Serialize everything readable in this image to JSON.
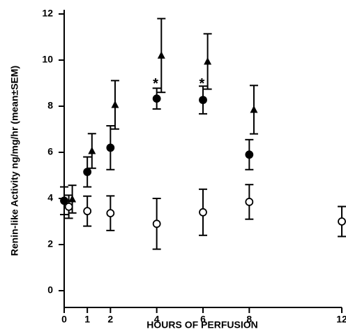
{
  "chart_data": {
    "type": "scatter",
    "x_label": "HOURS OF PERFUSION",
    "y_label": "Renin-like Activity ng/mg/hr (mean±SEM)",
    "xlim": [
      0,
      12
    ],
    "xticks": [
      0,
      1,
      2,
      4,
      6,
      8,
      12
    ],
    "ylim": [
      0,
      12
    ],
    "yticks": [
      0,
      2,
      4,
      6,
      8,
      10,
      12
    ],
    "series": [
      {
        "color": "#000000",
        "marker": "circle-filled",
        "x": [
          0,
          1,
          2,
          4,
          6,
          8
        ],
        "values": [
          3.9,
          5.15,
          6.2,
          8.33,
          8.27,
          5.9
        ],
        "errors": [
          0.6,
          0.65,
          0.95,
          0.45,
          0.6,
          0.65
        ]
      },
      {
        "color": "#000000",
        "marker": "triangle",
        "x": [
          0.35,
          1.2,
          2.2,
          4.2,
          6.2,
          8.2
        ],
        "values": [
          3.97,
          6.06,
          8.06,
          10.2,
          9.94,
          7.85
        ],
        "errors": [
          0.6,
          0.75,
          1.05,
          1.6,
          1.2,
          1.05
        ]
      },
      {
        "color": "#000000",
        "marker": "circle-open",
        "x": [
          0.2,
          1,
          2,
          4,
          6,
          8,
          12
        ],
        "values": [
          3.64,
          3.45,
          3.36,
          2.9,
          3.4,
          3.85,
          3.0
        ],
        "errors": [
          0.5,
          0.65,
          0.75,
          1.1,
          1.0,
          0.75,
          0.65
        ]
      }
    ],
    "annotations": [
      {
        "text": "*",
        "x": 3.95,
        "y": 8.95
      },
      {
        "text": "*",
        "x": 5.95,
        "y": 8.95
      }
    ]
  }
}
